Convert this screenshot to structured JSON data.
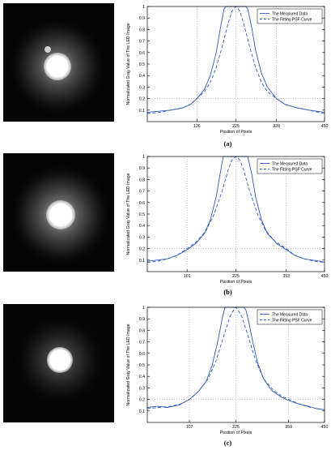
{
  "figure": {
    "panels": [
      {
        "label": "(a)"
      },
      {
        "label": "(b)"
      },
      {
        "label": "(c)"
      }
    ]
  },
  "colors": {
    "measured": "#2d5bb8",
    "fitting": "#2d5bb8",
    "guide": "#9a9a9a"
  },
  "chart_data": [
    {
      "type": "line",
      "title": "",
      "xlabel": "Position of Pixels",
      "ylabel": "Normalizated Gray Value of The LED Image",
      "xlim": [
        0,
        450
      ],
      "ylim": [
        0,
        1
      ],
      "xticks": [
        126,
        225,
        328,
        450
      ],
      "yticks": [
        0.1,
        0.2,
        0.3,
        0.4,
        0.5,
        0.6,
        0.7,
        0.8,
        0.9,
        1
      ],
      "guide_lines": {
        "x": [
          126,
          225,
          328
        ],
        "y": 0.2
      },
      "legend": {
        "position": "top-right",
        "entries": [
          "The Measured Data",
          "The Fitting PSF Curve"
        ]
      },
      "series": [
        {
          "name": "The Measured Data",
          "style": "solid",
          "x": [
            0,
            30,
            60,
            90,
            110,
            126,
            145,
            160,
            175,
            185,
            195,
            200,
            205,
            225,
            245,
            250,
            255,
            265,
            275,
            290,
            305,
            328,
            350,
            380,
            410,
            430,
            450
          ],
          "y": [
            0.08,
            0.09,
            0.1,
            0.12,
            0.15,
            0.2,
            0.28,
            0.4,
            0.6,
            0.8,
            0.98,
            1,
            1,
            1,
            1,
            1,
            0.98,
            0.82,
            0.62,
            0.42,
            0.3,
            0.2,
            0.15,
            0.12,
            0.1,
            0.09,
            0.08
          ]
        },
        {
          "name": "The Fitting PSF Curve",
          "style": "dashed",
          "x": [
            0,
            30,
            60,
            90,
            110,
            126,
            145,
            160,
            175,
            190,
            205,
            215,
            225,
            235,
            245,
            260,
            275,
            290,
            305,
            328,
            350,
            380,
            410,
            450
          ],
          "y": [
            0.07,
            0.08,
            0.1,
            0.12,
            0.15,
            0.2,
            0.26,
            0.34,
            0.47,
            0.65,
            0.85,
            0.96,
            1,
            0.96,
            0.85,
            0.65,
            0.47,
            0.34,
            0.26,
            0.2,
            0.15,
            0.12,
            0.1,
            0.07
          ]
        }
      ]
    },
    {
      "type": "line",
      "title": "",
      "xlabel": "Position of Pixels",
      "ylabel": "Normalizated Gray Value of The LED Image",
      "xlim": [
        0,
        450
      ],
      "ylim": [
        0,
        1
      ],
      "xticks": [
        101,
        225,
        353,
        450
      ],
      "yticks": [
        0.1,
        0.2,
        0.3,
        0.4,
        0.5,
        0.6,
        0.7,
        0.8,
        0.9,
        1
      ],
      "guide_lines": {
        "x": [
          101,
          225,
          353
        ],
        "y": 0.2
      },
      "legend": {
        "position": "top-right",
        "entries": [
          "The Measured Data",
          "The Fitting PSF Curve"
        ]
      },
      "series": [
        {
          "name": "The Measured Data",
          "style": "solid",
          "x": [
            0,
            25,
            50,
            75,
            101,
            125,
            145,
            160,
            175,
            185,
            193,
            200,
            225,
            250,
            255,
            265,
            275,
            290,
            305,
            330,
            353,
            375,
            400,
            420,
            440,
            450
          ],
          "y": [
            0.09,
            0.1,
            0.11,
            0.14,
            0.19,
            0.25,
            0.33,
            0.45,
            0.65,
            0.85,
            1,
            1,
            1,
            1,
            1,
            0.85,
            0.65,
            0.45,
            0.33,
            0.24,
            0.19,
            0.14,
            0.11,
            0.1,
            0.09,
            0.08
          ]
        },
        {
          "name": "The Fitting PSF Curve",
          "style": "dashed",
          "x": [
            0,
            25,
            50,
            75,
            101,
            125,
            150,
            170,
            190,
            205,
            215,
            225,
            235,
            245,
            260,
            280,
            300,
            325,
            353,
            375,
            400,
            425,
            450
          ],
          "y": [
            0.08,
            0.09,
            0.11,
            0.14,
            0.2,
            0.26,
            0.36,
            0.5,
            0.7,
            0.88,
            0.97,
            1,
            0.97,
            0.88,
            0.7,
            0.5,
            0.36,
            0.26,
            0.2,
            0.14,
            0.11,
            0.09,
            0.08
          ]
        }
      ]
    },
    {
      "type": "line",
      "title": "",
      "xlabel": "Position of Pixels",
      "ylabel": "Normalizated Gray Value of The LED Image",
      "xlim": [
        0,
        450
      ],
      "ylim": [
        0,
        1
      ],
      "xticks": [
        107,
        225,
        359,
        450
      ],
      "yticks": [
        0.1,
        0.2,
        0.3,
        0.4,
        0.5,
        0.6,
        0.7,
        0.8,
        0.9,
        1
      ],
      "guide_lines": {
        "x": [
          107,
          225,
          359
        ],
        "y": 0.2
      },
      "legend": {
        "position": "top-right",
        "entries": [
          "The Measured Data",
          "The Fitting PSF Curve"
        ]
      },
      "series": [
        {
          "name": "The Measured Data",
          "style": "solid",
          "x": [
            0,
            25,
            50,
            80,
            107,
            130,
            150,
            165,
            180,
            190,
            197,
            203,
            225,
            245,
            250,
            257,
            268,
            280,
            295,
            315,
            340,
            359,
            385,
            410,
            430,
            450
          ],
          "y": [
            0.13,
            0.14,
            0.13,
            0.15,
            0.2,
            0.27,
            0.36,
            0.5,
            0.72,
            0.9,
            1,
            1,
            1,
            1,
            0.98,
            0.88,
            0.7,
            0.52,
            0.38,
            0.28,
            0.22,
            0.19,
            0.16,
            0.14,
            0.12,
            0.11
          ]
        },
        {
          "name": "The Fitting PSF Curve",
          "style": "dashed",
          "x": [
            0,
            30,
            60,
            85,
            107,
            130,
            155,
            175,
            195,
            210,
            220,
            225,
            230,
            240,
            255,
            275,
            295,
            320,
            340,
            359,
            385,
            415,
            450
          ],
          "y": [
            0.12,
            0.13,
            0.14,
            0.16,
            0.2,
            0.27,
            0.38,
            0.54,
            0.76,
            0.92,
            0.98,
            1,
            0.98,
            0.92,
            0.76,
            0.54,
            0.38,
            0.28,
            0.23,
            0.2,
            0.16,
            0.13,
            0.11
          ]
        }
      ]
    }
  ]
}
